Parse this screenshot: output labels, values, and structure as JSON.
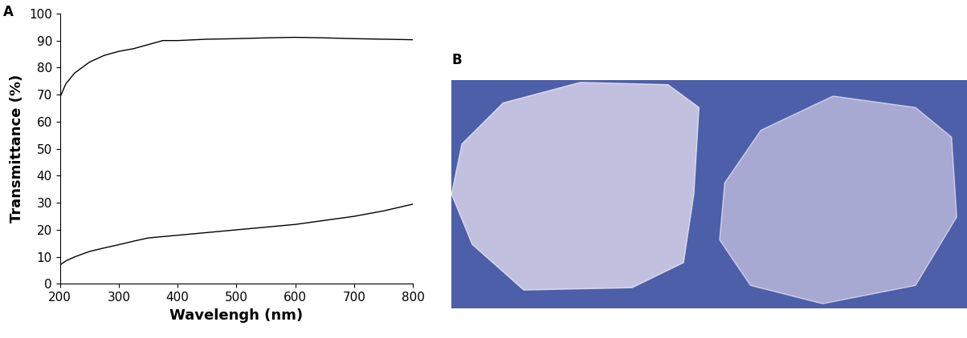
{
  "panel_labels": [
    "A",
    "B"
  ],
  "chart_data": {
    "type": "line",
    "x_label": "Wavelengh (nm)",
    "y_label": "Transmittance (%)",
    "x": [
      200,
      210,
      225,
      250,
      275,
      300,
      325,
      350,
      375,
      400,
      450,
      500,
      550,
      600,
      650,
      700,
      750,
      800
    ],
    "series": [
      {
        "color": "#000000",
        "values": [
          69,
          74,
          78,
          82,
          84.5,
          86,
          87,
          88.5,
          90,
          90,
          90.5,
          90.7,
          91,
          91.2,
          91,
          90.7,
          90.5,
          90.3
        ]
      },
      {
        "color": "#000000",
        "values": [
          7,
          8.5,
          10,
          12,
          13.3,
          14.5,
          15.8,
          17,
          17.5,
          18,
          19,
          20,
          21,
          22,
          23.5,
          25,
          27,
          29.5
        ]
      }
    ],
    "xlim": [
      200,
      800
    ],
    "xticks": [
      200,
      300,
      400,
      500,
      600,
      700,
      800
    ],
    "ylim": [
      0,
      100
    ],
    "yticks": [
      0,
      10,
      20,
      30,
      40,
      50,
      60,
      70,
      80,
      90,
      100
    ],
    "grid": false
  }
}
